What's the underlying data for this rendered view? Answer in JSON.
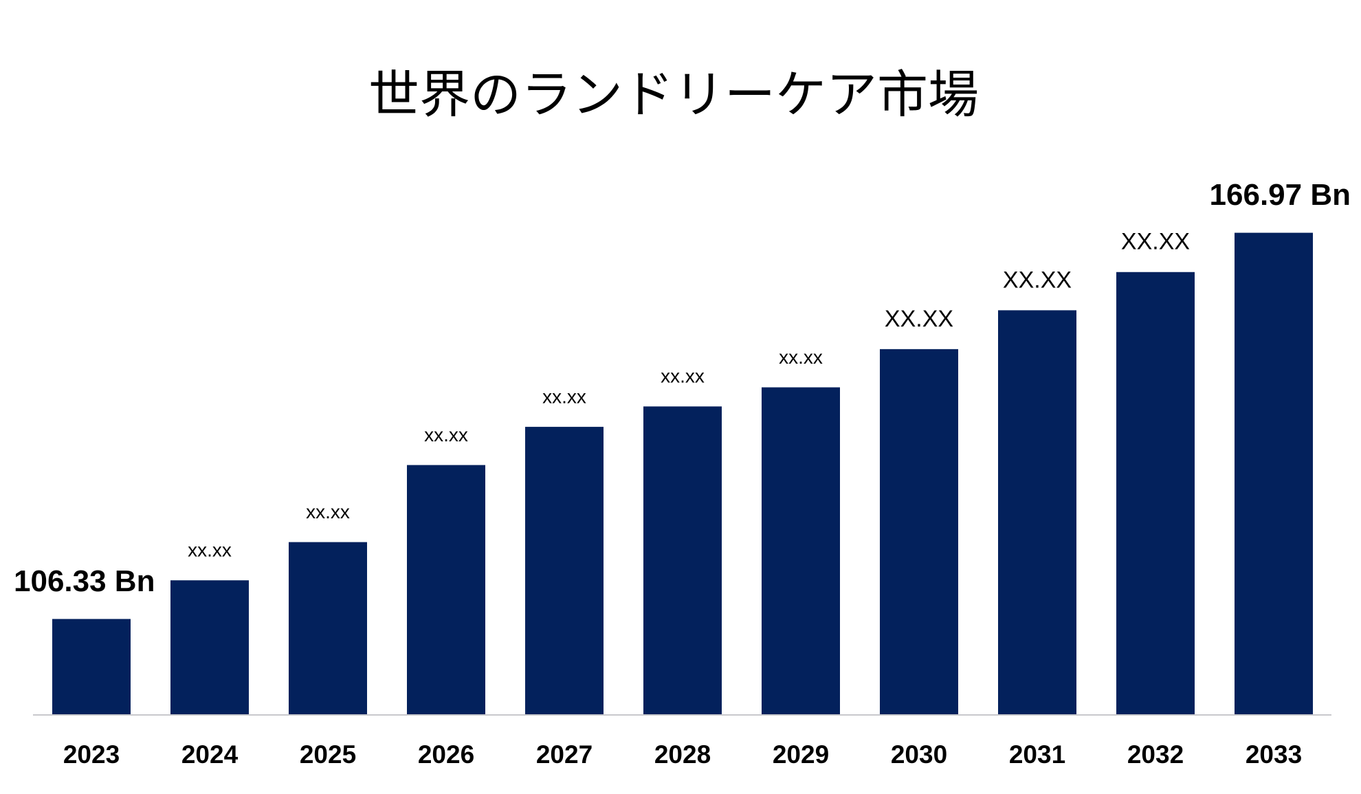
{
  "chart_data": {
    "type": "bar",
    "title": "世界のランドリーケア市場",
    "categories": [
      "2023",
      "2024",
      "2025",
      "2026",
      "2027",
      "2028",
      "2029",
      "2030",
      "2031",
      "2032",
      "2033"
    ],
    "values": [
      106.33,
      112.4,
      118.4,
      130.5,
      136.5,
      139.7,
      142.7,
      148.7,
      154.8,
      160.8,
      166.97
    ],
    "value_labels": [
      "106.33 Bn",
      "xx.xx",
      "xx.xx",
      "xx.xx",
      "xx.xx",
      "xx.xx",
      "xx.xx",
      "XX.XX",
      "XX.XX",
      "XX.XX",
      "166.97 Bn"
    ],
    "color": "#03215c",
    "ylim": [
      91.37,
      172
    ],
    "grid": false
  }
}
